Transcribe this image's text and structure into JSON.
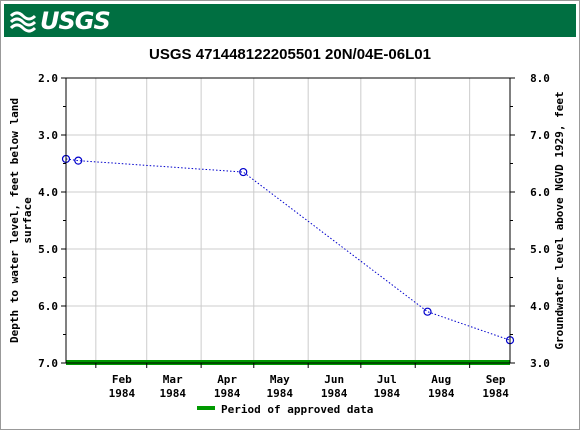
{
  "header": {
    "logo_text": "USGS",
    "bar_color": "#006f41",
    "logo_icon": "usgs-wave-icon"
  },
  "chart_data": {
    "type": "line",
    "title": "USGS 471448122205501 20N/04E-06L01",
    "ylabel_left": "Depth to water level, feet below land surface",
    "ylabel_right": "Groundwater level above NGVD 1929, feet",
    "ylim_left": [
      2.0,
      7.0
    ],
    "ylim_right": [
      8.0,
      3.0
    ],
    "inverted_left": true,
    "left_ticks": [
      "2.0",
      "3.0",
      "4.0",
      "5.0",
      "6.0",
      "7.0"
    ],
    "left_tick_values": [
      2.0,
      3.0,
      4.0,
      5.0,
      6.0,
      7.0
    ],
    "right_ticks": [
      "8.0",
      "7.0",
      "6.0",
      "5.0",
      "4.0",
      "3.0"
    ],
    "x_ticks": [
      {
        "month": "Feb",
        "year": "1984",
        "date": "1984-02-01"
      },
      {
        "month": "Mar",
        "year": "1984",
        "date": "1984-03-01"
      },
      {
        "month": "Apr",
        "year": "1984",
        "date": "1984-04-01"
      },
      {
        "month": "May",
        "year": "1984",
        "date": "1984-05-01"
      },
      {
        "month": "Jun",
        "year": "1984",
        "date": "1984-06-01"
      },
      {
        "month": "Jul",
        "year": "1984",
        "date": "1984-07-01"
      },
      {
        "month": "Aug",
        "year": "1984",
        "date": "1984-08-01"
      },
      {
        "month": "Sep",
        "year": "1984",
        "date": "1984-09-01"
      }
    ],
    "xlim": [
      "1984-01-15",
      "1984-09-24"
    ],
    "series": [
      {
        "points": [
          {
            "date": "1984-01-15",
            "depth": 3.42
          },
          {
            "date": "1984-01-22",
            "depth": 3.45
          },
          {
            "date": "1984-04-25",
            "depth": 3.65
          },
          {
            "date": "1984-08-08",
            "depth": 6.1
          },
          {
            "date": "1984-09-24",
            "depth": 6.6
          }
        ],
        "color": "#0000cc",
        "line_style": "dotted",
        "marker": "open-circle"
      }
    ],
    "approved_bar": {
      "color": "#009900",
      "depth": 7.0
    },
    "legend": {
      "label": "Period of approved data",
      "placement": "bottom-center"
    },
    "grid": true
  }
}
